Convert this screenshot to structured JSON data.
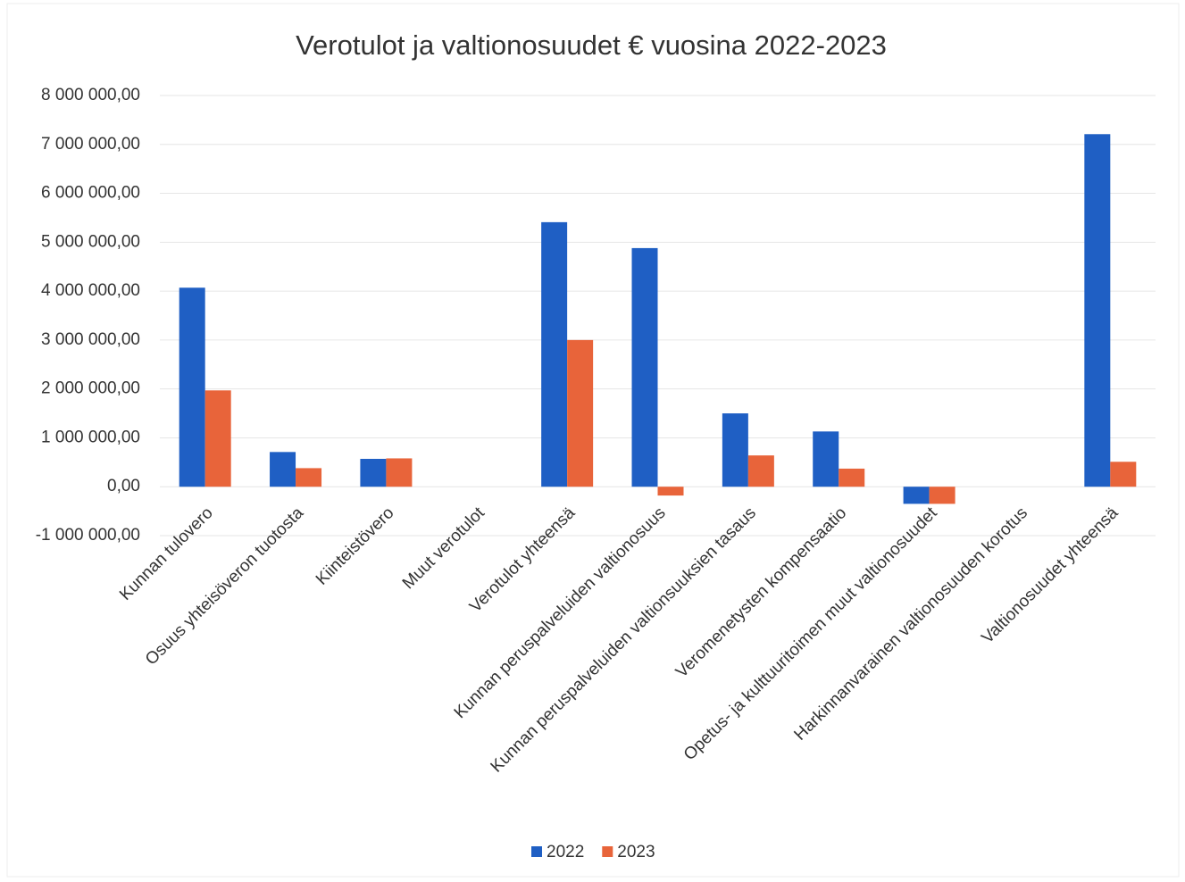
{
  "chart_data": {
    "type": "bar",
    "title": "Verotulot ja valtionosuudet € vuosina 2022-2023",
    "categories": [
      "Kunnan tulovero",
      "Osuus yhteisöveron tuotosta",
      "Kiinteistövero",
      "Muut verotulot",
      "Verotulot yhteensä",
      "Kunnan peruspalveluiden valtionosuus",
      "Kunnan peruspalveluiden valtionsuuksien tasaus",
      "Veromenetysten kompensaatio",
      "Opetus- ja kulttuuritoimen muut valtionosuudet",
      "Harkinnanvarainen valtionosuuden korotus",
      "Valtionosuudet yhteensä"
    ],
    "series": [
      {
        "name": "2022",
        "color": "#1f5fc4",
        "values": [
          4070000,
          710000,
          570000,
          0,
          5410000,
          4880000,
          1500000,
          1130000,
          -350000,
          0,
          7210000
        ]
      },
      {
        "name": "2023",
        "color": "#e8643a",
        "values": [
          1970000,
          380000,
          580000,
          0,
          3000000,
          -180000,
          640000,
          370000,
          -350000,
          0,
          510000
        ]
      }
    ],
    "ylim": [
      -1000000,
      8000000
    ],
    "yticks": [
      {
        "value": -1000000,
        "label": "-1 000 000,00"
      },
      {
        "value": 0,
        "label": "0,00"
      },
      {
        "value": 1000000,
        "label": "1 000 000,00"
      },
      {
        "value": 2000000,
        "label": "2 000 000,00"
      },
      {
        "value": 3000000,
        "label": "3 000 000,00"
      },
      {
        "value": 4000000,
        "label": "4 000 000,00"
      },
      {
        "value": 5000000,
        "label": "5 000 000,00"
      },
      {
        "value": 6000000,
        "label": "6 000 000,00"
      },
      {
        "value": 7000000,
        "label": "7 000 000,00"
      },
      {
        "value": 8000000,
        "label": "8 000 000,00"
      }
    ],
    "grid": true,
    "legend": "bottom"
  }
}
